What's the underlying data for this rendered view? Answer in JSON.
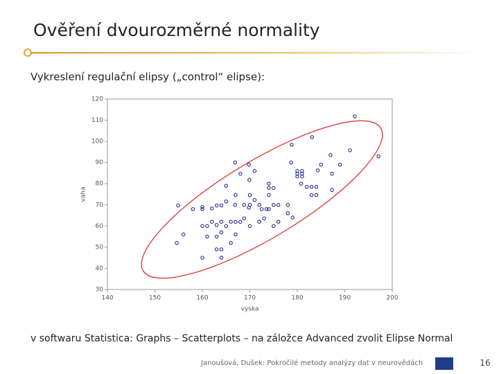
{
  "slide_title": "Ověření dvourozměrné normality",
  "intro": "Vykreslení regulační elipsy („control“ elipse):",
  "note": "v softwaru Statistica: Graphs – Scatterplots – na záložce Advanced zvolit Elipse Normal",
  "footer": "Janoušová, Dušek: Pokročilé metody analýzy dat v neurovědách",
  "page_number": "16",
  "chart_data": {
    "type": "scatter",
    "x_label": "vyska",
    "y_label": "vaha",
    "color": "#1f2a8a",
    "xlim": [
      140,
      200
    ],
    "xticks": [
      140,
      150,
      160,
      170,
      180,
      190,
      200
    ],
    "ylim": [
      30,
      120
    ],
    "yticks": [
      30,
      40,
      50,
      60,
      70,
      80,
      90,
      100,
      110,
      120
    ],
    "x": [
      192.1,
      183.1,
      178.8,
      191.1,
      197.1,
      187,
      185,
      189,
      166.9,
      169.8,
      171,
      168,
      178.7,
      180,
      181,
      180,
      181,
      180,
      181,
      184.3,
      187.3,
      169.9,
      174,
      174,
      175,
      165,
      180.8,
      182,
      183,
      184,
      187.3,
      183,
      184,
      167,
      170,
      174,
      154.9,
      158,
      160,
      160,
      162,
      163,
      164,
      165,
      166.9,
      168.8,
      169.8,
      171,
      170,
      172,
      175,
      176,
      172.5,
      173.5,
      178,
      178,
      179,
      156,
      154.6,
      160,
      161,
      162,
      164,
      163,
      165,
      166,
      167,
      168,
      168.8,
      161,
      163,
      164,
      167,
      172,
      173,
      174,
      175,
      176,
      170,
      166,
      163,
      164,
      160,
      164
    ],
    "y": [
      111.8,
      102,
      98.4,
      95.8,
      92.9,
      93.5,
      89,
      89,
      90,
      89,
      86,
      84.7,
      90,
      86,
      86,
      84.7,
      84.7,
      83.4,
      83.4,
      86.3,
      84.7,
      81.8,
      80,
      78,
      78,
      79,
      80,
      78.5,
      78.5,
      78.5,
      77,
      74.6,
      74.6,
      74.6,
      74.6,
      74.6,
      69.7,
      68,
      68,
      69,
      68.3,
      69.7,
      69.7,
      71.6,
      70,
      70,
      68.7,
      72.3,
      70,
      70,
      70,
      70,
      68,
      68,
      70,
      66,
      64,
      56,
      52,
      60,
      60,
      62,
      62,
      60.5,
      60,
      62,
      62,
      62,
      63.6,
      55,
      55,
      57,
      56,
      62,
      63.6,
      68,
      60,
      62,
      60,
      52,
      49,
      49,
      45,
      45
    ]
  }
}
